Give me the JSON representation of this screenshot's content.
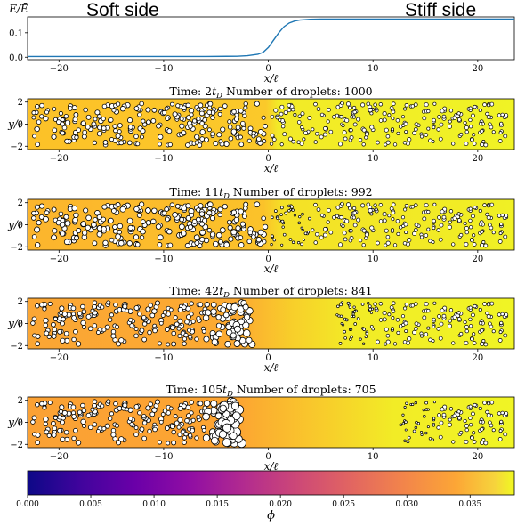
{
  "header": {
    "left_label": "Soft side",
    "right_label": "Stiff side"
  },
  "chart_data": [
    {
      "type": "line",
      "ylabel": "E/Ē",
      "xlabel": "x/ℓ",
      "xlim": [
        -23,
        23.5
      ],
      "ylim": [
        -0.01,
        0.165
      ],
      "yticks": [
        "0.0",
        "0.1"
      ],
      "xticks": [
        "−20",
        "−10",
        "0",
        "10",
        "20"
      ],
      "series": [
        {
          "x": [
            -23,
            -6,
            -3,
            -2,
            -1,
            -0.5,
            0,
            0.5,
            1,
            1.5,
            2,
            2.5,
            3,
            4,
            5,
            6,
            23.5
          ],
          "y": [
            0.003,
            0.003,
            0.004,
            0.006,
            0.012,
            0.02,
            0.04,
            0.07,
            0.1,
            0.125,
            0.14,
            0.148,
            0.152,
            0.155,
            0.156,
            0.156,
            0.156
          ],
          "color": "#1f77b4"
        }
      ]
    },
    {
      "type": "scatter",
      "title_prefix": "Time: 2",
      "title_suffix": " Number of droplets: 1000",
      "ylabel": "y/ℓ",
      "xlabel": "x/ℓ",
      "xlim": [
        -23,
        23.5
      ],
      "ylim": [
        -2.3,
        2.3
      ],
      "time_td": 2,
      "droplets": 1000,
      "yticks": [
        "2",
        "0",
        "−2"
      ],
      "xticks": [
        "−20",
        "−10",
        "0",
        "10",
        "20"
      ]
    },
    {
      "type": "scatter",
      "title_prefix": "Time: 11",
      "title_suffix": " Number of droplets: 992",
      "ylabel": "y/ℓ",
      "xlabel": "x/ℓ",
      "xlim": [
        -23,
        23.5
      ],
      "ylim": [
        -2.3,
        2.3
      ],
      "time_td": 11,
      "droplets": 992,
      "yticks": [
        "2",
        "0",
        "−2"
      ],
      "xticks": [
        "−20",
        "−10",
        "0",
        "10",
        "20"
      ]
    },
    {
      "type": "scatter",
      "title_prefix": "Time: 42",
      "title_suffix": " Number of droplets: 841",
      "ylabel": "y/ℓ",
      "xlabel": "x/ℓ",
      "xlim": [
        -23,
        23.5
      ],
      "ylim": [
        -2.3,
        2.3
      ],
      "time_td": 42,
      "droplets": 841,
      "yticks": [
        "2",
        "0",
        "−2"
      ],
      "xticks": [
        "−20",
        "−10",
        "0",
        "10",
        "20"
      ]
    },
    {
      "type": "scatter",
      "title_prefix": "Time: 105",
      "title_suffix": " Number of droplets: 705",
      "ylabel": "y/ℓ",
      "xlabel": "x/ℓ",
      "xlim": [
        -23,
        23.5
      ],
      "ylim": [
        -2.3,
        2.3
      ],
      "time_td": 105,
      "droplets": 705,
      "yticks": [
        "2",
        "0",
        "−2"
      ],
      "xticks": [
        "−20",
        "−10",
        "0",
        "10",
        "20"
      ]
    },
    {
      "type": "colorbar",
      "label": "ϕ",
      "colormap": "plasma",
      "range": [
        0,
        0.0385
      ],
      "ticks": [
        "0.000",
        "0.005",
        "0.010",
        "0.015",
        "0.020",
        "0.025",
        "0.030",
        "0.035"
      ]
    }
  ],
  "subscript": "D",
  "t_symbol": "t"
}
